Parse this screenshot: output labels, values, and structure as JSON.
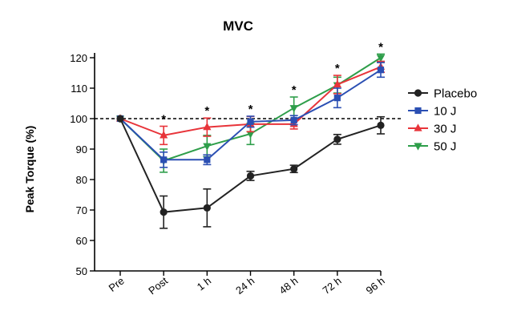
{
  "chart_data": {
    "type": "line",
    "title": "MVC",
    "xlabel": "",
    "ylabel": "Peak Torque (%)",
    "categories": [
      "Pre",
      "Post",
      "1 h",
      "24 h",
      "48 h",
      "72 h",
      "96 h"
    ],
    "ylim": [
      50,
      120
    ],
    "yticks": [
      50,
      60,
      70,
      80,
      90,
      100,
      110,
      120
    ],
    "reference_line": 100,
    "grid": false,
    "legend_position": "right",
    "significance_marker": "*",
    "significance_categories": [
      "Post",
      "1 h",
      "24 h",
      "48 h",
      "72 h",
      "96 h"
    ],
    "series": [
      {
        "name": "Placebo",
        "color": "#222222",
        "marker": "circle",
        "values": [
          100,
          69.3,
          70.7,
          81.2,
          83.5,
          93.2,
          97.8
        ],
        "errors": [
          0.5,
          5.3,
          6.2,
          1.5,
          1.2,
          1.6,
          2.8
        ]
      },
      {
        "name": "10 J",
        "color": "#2b4fb3",
        "marker": "square",
        "values": [
          100,
          86.5,
          86.5,
          99.0,
          99.5,
          106.8,
          116.0
        ],
        "errors": [
          0.5,
          2.5,
          1.6,
          1.8,
          1.5,
          3.2,
          2.4
        ]
      },
      {
        "name": "30 J",
        "color": "#e8343a",
        "marker": "triangle-up",
        "values": [
          100,
          94.5,
          97.2,
          98.2,
          98.2,
          111.2,
          117.0
        ],
        "errors": [
          0.5,
          3.0,
          3.0,
          2.5,
          1.6,
          3.0,
          1.8
        ]
      },
      {
        "name": "50 J",
        "color": "#2e9e4a",
        "marker": "triangle-down",
        "values": [
          100,
          86.2,
          91.0,
          95.0,
          103.5,
          111.0,
          120.0
        ],
        "errors": [
          0.5,
          3.8,
          3.5,
          3.5,
          3.6,
          2.6,
          1.2
        ]
      }
    ]
  }
}
